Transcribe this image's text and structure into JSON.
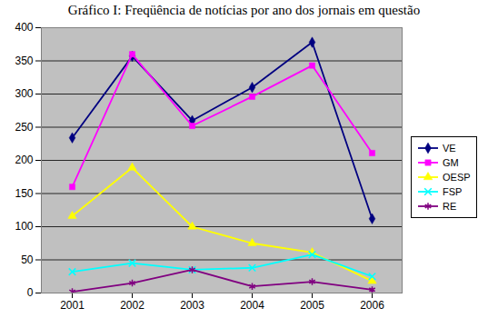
{
  "chart_data": {
    "type": "line",
    "title": "Gráfico I: Freqüência de notícias por ano dos jornais em questão",
    "categories": [
      "2001",
      "2002",
      "2003",
      "2004",
      "2005",
      "2006"
    ],
    "series": [
      {
        "name": "VE",
        "color": "#000080",
        "marker": "diamond",
        "values": [
          234,
          357,
          260,
          310,
          378,
          112
        ]
      },
      {
        "name": "GM",
        "color": "#ff00ff",
        "marker": "square",
        "values": [
          160,
          360,
          252,
          296,
          343,
          211
        ]
      },
      {
        "name": "OESP",
        "color": "#ffff00",
        "marker": "triangle",
        "values": [
          116,
          189,
          100,
          75,
          61,
          18
        ]
      },
      {
        "name": "FSP",
        "color": "#00ffff",
        "marker": "x",
        "values": [
          32,
          45,
          35,
          38,
          58,
          25
        ]
      },
      {
        "name": "RE",
        "color": "#800080",
        "marker": "asterisk",
        "values": [
          2,
          15,
          35,
          10,
          17,
          5
        ]
      }
    ],
    "ylim": [
      0,
      400
    ],
    "yticks": [
      0,
      50,
      100,
      150,
      200,
      250,
      300,
      350,
      400
    ],
    "grid": true,
    "legend": "right"
  }
}
